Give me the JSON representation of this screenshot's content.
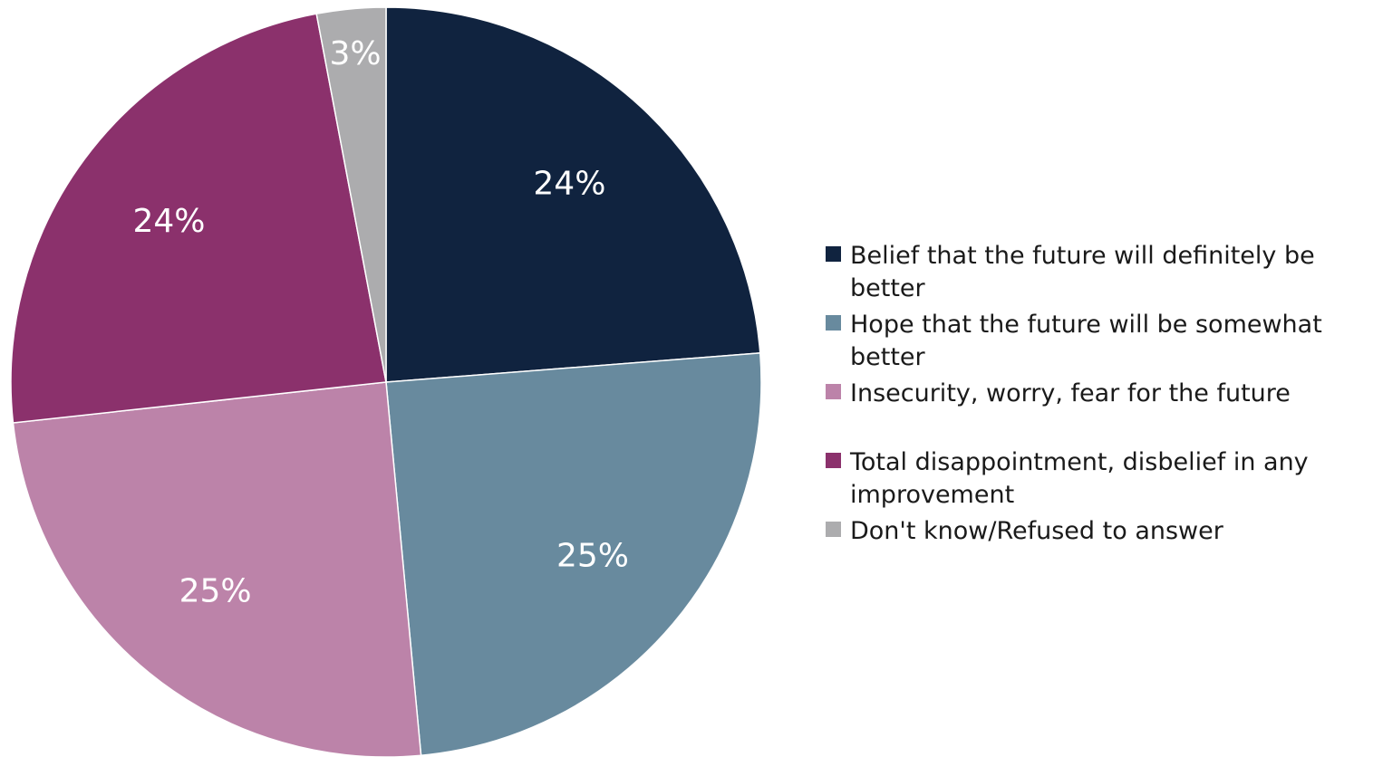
{
  "chart_data": {
    "type": "pie",
    "start_angle_deg": 0,
    "direction": "clockwise",
    "legend_position": "right",
    "slices": [
      {
        "label": "Belief that the future will definitely be better",
        "legend_lines": [
          "Belief that the future will definitely be",
          "better"
        ],
        "value": 24,
        "display": "24%",
        "color": "#10233f"
      },
      {
        "label": "Hope that the future will be somewhat better",
        "legend_lines": [
          "Hope that the future will be somewhat",
          "better"
        ],
        "value": 25,
        "display": "25%",
        "color": "#688a9e"
      },
      {
        "label": "Insecurity, worry, fear for the future",
        "legend_lines": [
          "Insecurity, worry, fear for the future"
        ],
        "value": 25,
        "display": "25%",
        "color": "#bc83a9"
      },
      {
        "label": "Total disappointment, disbelief in any improvement",
        "legend_lines": [
          "Total disappointment, disbelief in any",
          "improvement"
        ],
        "value": 24,
        "display": "24%",
        "color": "#8b316c"
      },
      {
        "label": "Don't know/Refused to answer",
        "legend_lines": [
          "Don't know/Refused to answer"
        ],
        "value": 3,
        "display": "3%",
        "color": "#acacae"
      }
    ]
  }
}
